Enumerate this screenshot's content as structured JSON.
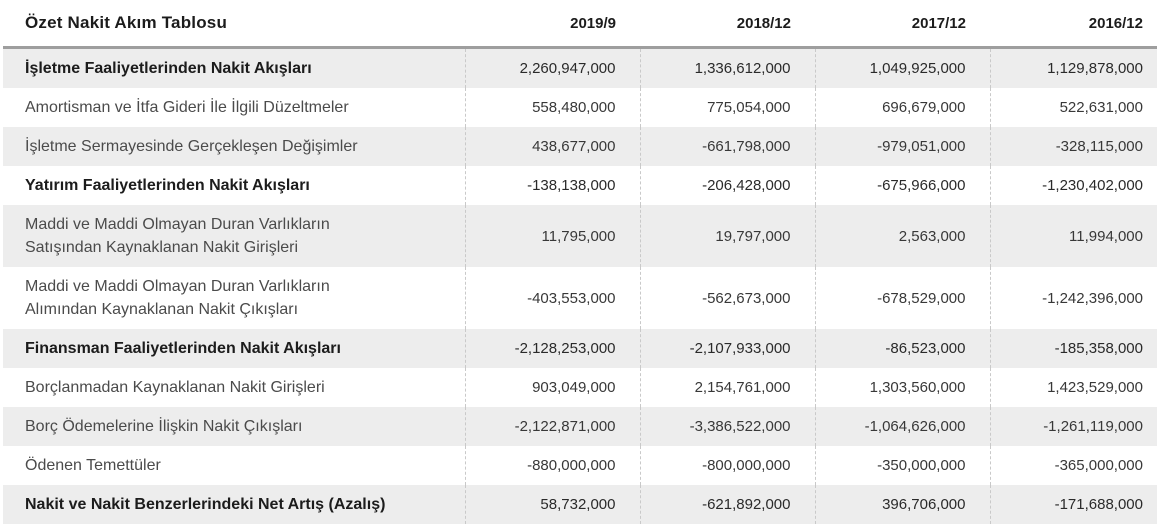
{
  "table": {
    "title": "Özet Nakit Akım Tablosu",
    "columns": [
      "2019/9",
      "2018/12",
      "2017/12",
      "2016/12"
    ],
    "rows": [
      {
        "label": "İşletme Faaliyetlerinden Nakit Akışları",
        "bold": true,
        "values": [
          "2,260,947,000",
          "1,336,612,000",
          "1,049,925,000",
          "1,129,878,000"
        ]
      },
      {
        "label": "Amortisman ve İtfa Gideri İle İlgili Düzeltmeler",
        "bold": false,
        "values": [
          "558,480,000",
          "775,054,000",
          "696,679,000",
          "522,631,000"
        ]
      },
      {
        "label": "İşletme Sermayesinde Gerçekleşen Değişimler",
        "bold": false,
        "values": [
          "438,677,000",
          "-661,798,000",
          "-979,051,000",
          "-328,115,000"
        ]
      },
      {
        "label": "Yatırım Faaliyetlerinden Nakit Akışları",
        "bold": true,
        "values": [
          "-138,138,000",
          "-206,428,000",
          "-675,966,000",
          "-1,230,402,000"
        ]
      },
      {
        "label": "Maddi ve Maddi Olmayan Duran Varlıkların\nSatışından Kaynaklanan Nakit Girişleri",
        "bold": false,
        "values": [
          "11,795,000",
          "19,797,000",
          "2,563,000",
          "11,994,000"
        ]
      },
      {
        "label": "Maddi ve Maddi Olmayan Duran Varlıkların\nAlımından Kaynaklanan Nakit Çıkışları",
        "bold": false,
        "values": [
          "-403,553,000",
          "-562,673,000",
          "-678,529,000",
          "-1,242,396,000"
        ]
      },
      {
        "label": "Finansman Faaliyetlerinden Nakit Akışları",
        "bold": true,
        "values": [
          "-2,128,253,000",
          "-2,107,933,000",
          "-86,523,000",
          "-185,358,000"
        ]
      },
      {
        "label": "Borçlanmadan Kaynaklanan Nakit Girişleri",
        "bold": false,
        "values": [
          "903,049,000",
          "2,154,761,000",
          "1,303,560,000",
          "1,423,529,000"
        ]
      },
      {
        "label": "Borç Ödemelerine İlişkin Nakit Çıkışları",
        "bold": false,
        "values": [
          "-2,122,871,000",
          "-3,386,522,000",
          "-1,064,626,000",
          "-1,261,119,000"
        ]
      },
      {
        "label": "Ödenen Temettüler",
        "bold": false,
        "values": [
          "-880,000,000",
          "-800,000,000",
          "-350,000,000",
          "-365,000,000"
        ]
      },
      {
        "label": "Nakit ve Nakit Benzerlerindeki Net Artış (Azalış)",
        "bold": true,
        "values": [
          "58,732,000",
          "-621,892,000",
          "396,706,000",
          "-171,688,000"
        ]
      }
    ],
    "colors": {
      "row_alt_bg": "#ededed",
      "header_rule": "#9e9e9e",
      "column_separator": "#c9c9c9",
      "text_bold": "#1c1c1c",
      "text_regular": "#4b4b4b",
      "text_number": "#383838"
    }
  },
  "chart_data": {
    "type": "table",
    "title": "Özet Nakit Akım Tablosu",
    "columns": [
      "2019/9",
      "2018/12",
      "2017/12",
      "2016/12"
    ],
    "rows": [
      {
        "label": "İşletme Faaliyetlerinden Nakit Akışları",
        "values": [
          2260947000,
          1336612000,
          1049925000,
          1129878000
        ]
      },
      {
        "label": "Amortisman ve İtfa Gideri İle İlgili Düzeltmeler",
        "values": [
          558480000,
          775054000,
          696679000,
          522631000
        ]
      },
      {
        "label": "İşletme Sermayesinde Gerçekleşen Değişimler",
        "values": [
          438677000,
          -661798000,
          -979051000,
          -328115000
        ]
      },
      {
        "label": "Yatırım Faaliyetlerinden Nakit Akışları",
        "values": [
          -138138000,
          -206428000,
          -675966000,
          -1230402000
        ]
      },
      {
        "label": "Maddi ve Maddi Olmayan Duran Varlıkların Satışından Kaynaklanan Nakit Girişleri",
        "values": [
          11795000,
          19797000,
          2563000,
          11994000
        ]
      },
      {
        "label": "Maddi ve Maddi Olmayan Duran Varlıkların Alımından Kaynaklanan Nakit Çıkışları",
        "values": [
          -403553000,
          -562673000,
          -678529000,
          -1242396000
        ]
      },
      {
        "label": "Finansman Faaliyetlerinden Nakit Akışları",
        "values": [
          -2128253000,
          -2107933000,
          -86523000,
          -185358000
        ]
      },
      {
        "label": "Borçlanmadan Kaynaklanan Nakit Girişleri",
        "values": [
          903049000,
          2154761000,
          1303560000,
          1423529000
        ]
      },
      {
        "label": "Borç Ödemelerine İlişkin Nakit Çıkışları",
        "values": [
          -2122871000,
          -3386522000,
          -1064626000,
          -1261119000
        ]
      },
      {
        "label": "Ödenen Temettüler",
        "values": [
          -880000000,
          -800000000,
          -350000000,
          -365000000
        ]
      },
      {
        "label": "Nakit ve Nakit Benzerlerindeki Net Artış (Azalış)",
        "values": [
          58732000,
          -621892000,
          396706000,
          -171688000
        ]
      }
    ]
  }
}
